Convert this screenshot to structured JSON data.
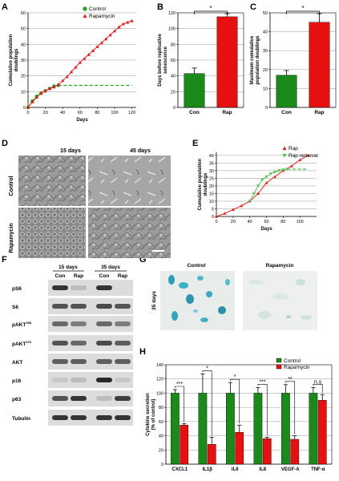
{
  "panels": {
    "A": {
      "letter": "A",
      "chart_data": {
        "type": "line",
        "xlabel": "Days",
        "ylabel": "Cumulative population doublings",
        "xlim": [
          0,
          125
        ],
        "ylim": [
          0,
          60
        ],
        "xticks": [
          "0",
          "20",
          "40",
          "60",
          "80",
          "100",
          "120"
        ],
        "yticks": [
          "0",
          "10",
          "20",
          "30",
          "40",
          "50",
          "60"
        ],
        "grid": true,
        "legend": "top-right",
        "series": [
          {
            "name": "Control",
            "color": "#1fa11f",
            "marker": "circle",
            "x": [
              0,
              5,
              10,
              15,
              20,
              25,
              30,
              35
            ],
            "y": [
              0,
              4,
              7,
              9,
              10.5,
              12,
              13.5,
              14
            ],
            "plateau": {
              "x": [
                35,
                120
              ],
              "y": 14
            }
          },
          {
            "name": "Rapamycin",
            "color": "#e02020",
            "marker": "triangle",
            "x": [
              0,
              5,
              10,
              15,
              20,
              25,
              30,
              35,
              40,
              45,
              50,
              55,
              60,
              65,
              70,
              75,
              80,
              85,
              90,
              95,
              100,
              105,
              110,
              115,
              120
            ],
            "y": [
              0,
              3.5,
              6.5,
              9,
              10.5,
              12,
              13,
              14.5,
              17,
              19.5,
              22.5,
              25.5,
              28.5,
              31,
              33.5,
              36,
              38.5,
              41,
              43.5,
              46,
              48.5,
              51,
              53,
              54,
              55
            ]
          }
        ]
      }
    },
    "B": {
      "letter": "B",
      "chart_data": {
        "type": "bar",
        "categories": [
          "Con",
          "Rap"
        ],
        "values": [
          43,
          115
        ],
        "errors": [
          7,
          4
        ],
        "colors": [
          "#1a8a1a",
          "#e61010"
        ],
        "ylabel": "Days before replicative senescence",
        "ylim": [
          0,
          120
        ],
        "yticks": [
          "0",
          "20",
          "40",
          "60",
          "80",
          "100",
          "120"
        ],
        "grid": true,
        "significance": "*"
      }
    },
    "C": {
      "letter": "C",
      "chart_data": {
        "type": "bar",
        "categories": [
          "Con",
          "Rap"
        ],
        "values": [
          17,
          45
        ],
        "errors": [
          2.5,
          4.5
        ],
        "colors": [
          "#1a8a1a",
          "#e61010"
        ],
        "ylabel": "Maximum cumulative population doublings",
        "ylim": [
          0,
          50
        ],
        "yticks": [
          "0",
          "10",
          "20",
          "30",
          "40",
          "50"
        ],
        "grid": true,
        "significance": "*"
      }
    },
    "D": {
      "letter": "D",
      "col_headers": [
        "15 days",
        "45 days"
      ],
      "row_labels": [
        "Control",
        "Rapamycin"
      ]
    },
    "E": {
      "letter": "E",
      "chart_data": {
        "type": "line",
        "xlabel": "Days",
        "ylabel": "Cumulative population doublings",
        "xlim": [
          0,
          120
        ],
        "ylim": [
          0,
          42
        ],
        "xticks": [
          "0",
          "20",
          "40",
          "60",
          "80",
          "100"
        ],
        "yticks": [
          "0",
          "5",
          "10",
          "15",
          "20",
          "25",
          "30",
          "35",
          "40"
        ],
        "grid": true,
        "legend": "right",
        "series": [
          {
            "name": "Rap",
            "color": "#e02020",
            "marker": "triangle",
            "x": [
              0,
              10,
              20,
              30,
              40,
              50,
              60,
              70,
              80,
              90,
              100,
              110
            ],
            "y": [
              0,
              2,
              4.5,
              7,
              10,
              15,
              22,
              26,
              30,
              33,
              37,
              40
            ]
          },
          {
            "name": "Rap removal",
            "color": "#55c455",
            "marker": "triangle-down",
            "x": [
              40,
              45,
              50,
              55,
              60,
              65,
              70,
              75,
              80,
              85
            ],
            "y": [
              10,
              15,
              20,
              24,
              26,
              28,
              29,
              30,
              30.5,
              31
            ],
            "plateau": {
              "x": [
                85,
                110
              ],
              "y": 31
            }
          }
        ]
      }
    },
    "F": {
      "letter": "F",
      "col_groups": [
        "15 days",
        "35 days"
      ],
      "lanes": [
        "Con",
        "Rap",
        "Con",
        "Rap"
      ],
      "rows": [
        "pS6",
        "S6",
        "pAKT308",
        "pAKT473",
        "AKT",
        "p16",
        "p63",
        "Tubulin"
      ],
      "row_base": [
        "pS6",
        "S6",
        "pAKT",
        "pAKT",
        "AKT",
        "p16",
        "p63",
        "Tubulin"
      ],
      "row_sup": [
        "",
        "",
        "308",
        "473",
        "",
        "",
        "",
        ""
      ],
      "intensity": [
        [
          0.85,
          0.2,
          0.85,
          0.05
        ],
        [
          0.7,
          0.7,
          0.75,
          0.7
        ],
        [
          0.6,
          0.5,
          0.6,
          0.5
        ],
        [
          0.7,
          0.6,
          0.75,
          0.65
        ],
        [
          0.65,
          0.65,
          0.65,
          0.65
        ],
        [
          0.15,
          0.2,
          0.9,
          0.15
        ],
        [
          0.7,
          0.85,
          0.2,
          0.8
        ],
        [
          0.85,
          0.85,
          0.85,
          0.85
        ]
      ]
    },
    "G": {
      "letter": "G",
      "col_headers": [
        "Control",
        "Rapamycin"
      ],
      "row_label": "35 days"
    },
    "H": {
      "letter": "H",
      "chart_data": {
        "type": "bar",
        "categories": [
          "CXCL1",
          "IL1β",
          "IL6",
          "IL8",
          "VEGF-A",
          "TNF-α"
        ],
        "series": [
          {
            "name": "Control",
            "color": "#1a8a1a",
            "values": [
              100,
              100,
              100,
              100,
              100,
              100
            ],
            "errors": [
              5,
              27,
              15,
              8,
              12,
              8
            ]
          },
          {
            "name": "Rapamycin",
            "color": "#e61010",
            "values": [
              55,
              28,
              45,
              36,
              35,
              90
            ],
            "errors": [
              2,
              10,
              10,
              2,
              5,
              8
            ]
          }
        ],
        "ylabel": "Cytokine secretion (% of control)",
        "ylim": [
          0,
          140
        ],
        "yticks": [
          "0",
          "20",
          "40",
          "60",
          "80",
          "100",
          "120",
          "140"
        ],
        "grid": true,
        "legend": "top-right",
        "significance": [
          "***",
          "*",
          "*",
          "***",
          "**",
          "n.s"
        ]
      }
    }
  }
}
